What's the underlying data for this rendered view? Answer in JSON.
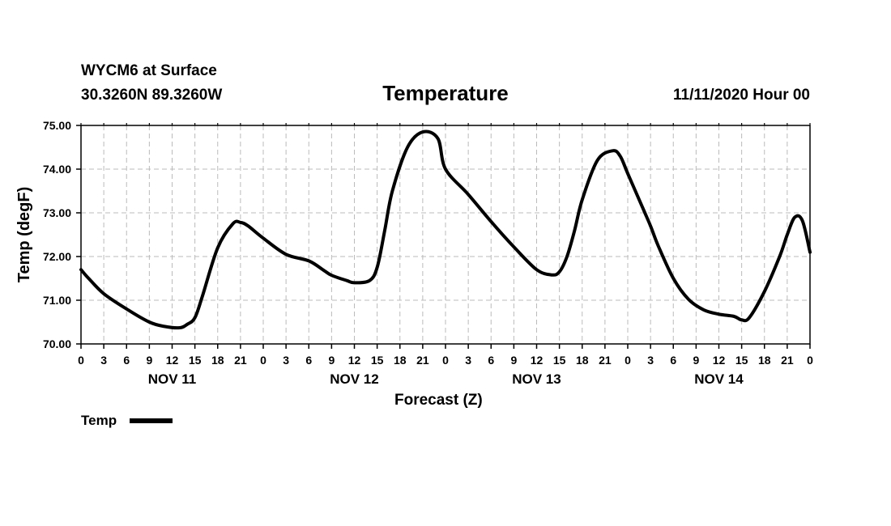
{
  "header": {
    "station": "WYCM6 at Surface",
    "coordinates": "30.3260N 89.3260W",
    "title": "Temperature",
    "date": "11/11/2020 Hour 00"
  },
  "chart_data": {
    "type": "line",
    "title": "Temperature",
    "xlabel": "Forecast (Z)",
    "ylabel": "Temp (degF)",
    "ylim": [
      70.0,
      75.0
    ],
    "y_ticks": [
      "70.00",
      "71.00",
      "72.00",
      "73.00",
      "74.00",
      "75.00"
    ],
    "xlim": [
      0,
      96
    ],
    "x_ticks_hours": [
      0,
      3,
      6,
      9,
      12,
      15,
      18,
      21,
      24,
      27,
      30,
      33,
      36,
      39,
      42,
      45,
      48,
      51,
      54,
      57,
      60,
      63,
      66,
      69,
      72,
      75,
      78,
      81,
      84,
      87,
      90,
      93,
      96
    ],
    "x_tick_labels": [
      "0",
      "3",
      "6",
      "9",
      "12",
      "15",
      "18",
      "21",
      "0",
      "3",
      "6",
      "9",
      "12",
      "15",
      "18",
      "21",
      "0",
      "3",
      "6",
      "9",
      "12",
      "15",
      "18",
      "21",
      "0",
      "3",
      "6",
      "9",
      "12",
      "15",
      "18",
      "21",
      "0"
    ],
    "day_labels": [
      {
        "label": "NOV 11",
        "hour": 12
      },
      {
        "label": "NOV 12",
        "hour": 36
      },
      {
        "label": "NOV 13",
        "hour": 60
      },
      {
        "label": "NOV 14",
        "hour": 84
      }
    ],
    "grid": true,
    "line_color": "#000000",
    "series": [
      {
        "name": "Temp",
        "x": [
          0,
          1,
          3,
          6,
          9,
          11,
          13,
          14,
          15,
          16,
          18,
          20,
          21,
          22,
          24,
          27,
          30,
          32,
          33,
          35,
          36,
          38,
          39,
          40,
          41,
          43,
          45,
          47,
          48,
          51,
          54,
          57,
          60,
          62,
          63,
          64,
          65,
          66,
          68,
          70,
          71,
          72,
          74,
          75,
          76,
          78,
          80,
          82,
          84,
          86,
          87,
          88,
          90,
          92,
          93,
          94,
          95,
          96
        ],
        "y": [
          71.7,
          71.5,
          71.15,
          70.8,
          70.5,
          70.4,
          70.37,
          70.45,
          70.6,
          71.1,
          72.2,
          72.75,
          72.78,
          72.7,
          72.42,
          72.05,
          71.9,
          71.68,
          71.57,
          71.45,
          71.4,
          71.45,
          71.75,
          72.6,
          73.5,
          74.5,
          74.85,
          74.7,
          74.0,
          73.42,
          72.8,
          72.22,
          71.7,
          71.58,
          71.65,
          72.0,
          72.6,
          73.3,
          74.2,
          74.42,
          74.3,
          73.9,
          73.1,
          72.7,
          72.25,
          71.5,
          71.02,
          70.78,
          70.68,
          70.63,
          70.55,
          70.6,
          71.2,
          72.0,
          72.5,
          72.9,
          72.82,
          72.1
        ]
      }
    ],
    "legend": {
      "position": "bottom-left",
      "label": "Temp"
    }
  }
}
